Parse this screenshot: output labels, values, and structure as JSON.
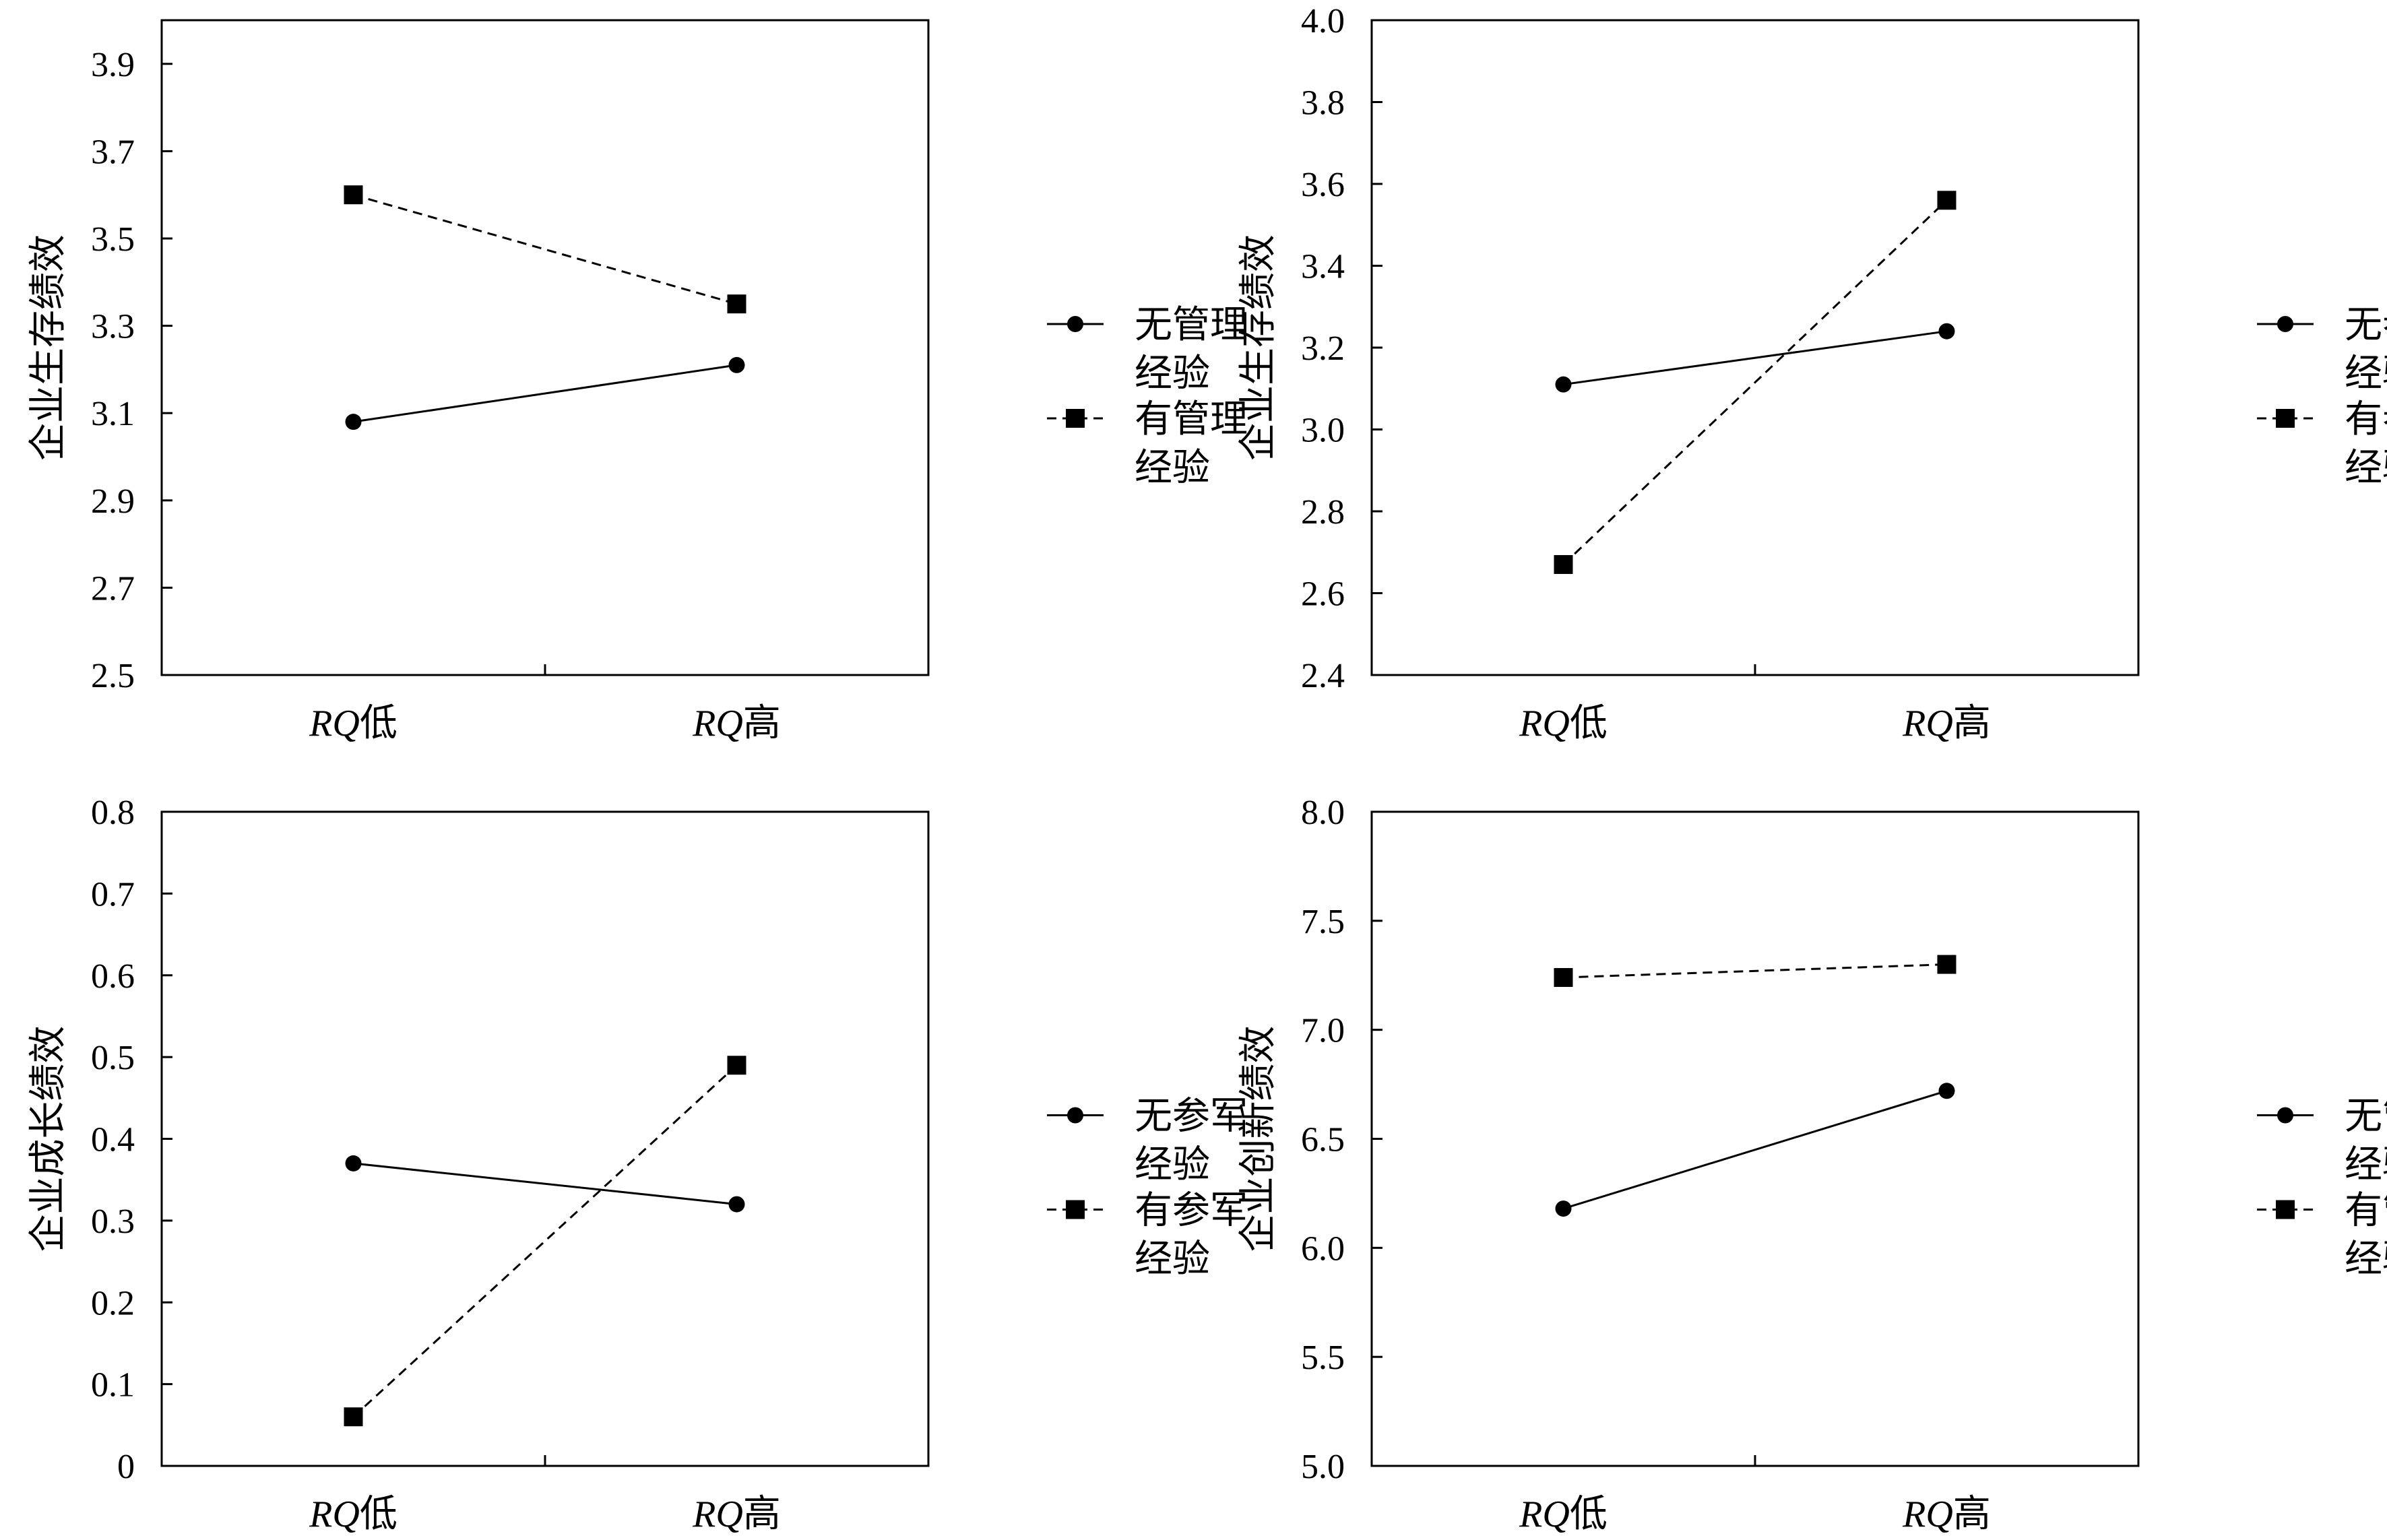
{
  "chart_data": [
    {
      "type": "line",
      "ylabel": "企业生存绩效",
      "categories": [
        {
          "italic": "RQ",
          "suffix": "低"
        },
        {
          "italic": "RQ",
          "suffix": "高"
        }
      ],
      "ylim": [
        2.5,
        4.0
      ],
      "yticks": [
        "2.5",
        "2.7",
        "2.9",
        "3.1",
        "3.3",
        "3.5",
        "3.7",
        "3.9"
      ],
      "series": [
        {
          "name_lines": [
            "无管理",
            "经验"
          ],
          "marker": "circle",
          "dash": false,
          "values": [
            3.08,
            3.21
          ]
        },
        {
          "name_lines": [
            "有管理",
            "经验"
          ],
          "marker": "square",
          "dash": true,
          "values": [
            3.6,
            3.35
          ]
        }
      ]
    },
    {
      "type": "line",
      "ylabel": "企业生存绩效",
      "categories": [
        {
          "italic": "RQ",
          "suffix": "低"
        },
        {
          "italic": "RQ",
          "suffix": "高"
        }
      ],
      "ylim": [
        2.4,
        4.0
      ],
      "yticks": [
        "2.4",
        "2.6",
        "2.8",
        "3.0",
        "3.2",
        "3.4",
        "3.6",
        "3.8",
        "4.0"
      ],
      "series": [
        {
          "name_lines": [
            "无参军",
            "经验"
          ],
          "marker": "circle",
          "dash": false,
          "values": [
            3.11,
            3.24
          ]
        },
        {
          "name_lines": [
            "有参军",
            "经验"
          ],
          "marker": "square",
          "dash": true,
          "values": [
            2.67,
            3.56
          ]
        }
      ]
    },
    {
      "type": "line",
      "ylabel": "企业成长绩效",
      "categories": [
        {
          "italic": "RQ",
          "suffix": "低"
        },
        {
          "italic": "RQ",
          "suffix": "高"
        }
      ],
      "ylim": [
        0,
        0.8
      ],
      "yticks": [
        "0",
        "0.1",
        "0.2",
        "0.3",
        "0.4",
        "0.5",
        "0.6",
        "0.7",
        "0.8"
      ],
      "series": [
        {
          "name_lines": [
            "无参军",
            "经验"
          ],
          "marker": "circle",
          "dash": false,
          "values": [
            0.37,
            0.32
          ]
        },
        {
          "name_lines": [
            "有参军",
            "经验"
          ],
          "marker": "square",
          "dash": true,
          "values": [
            0.06,
            0.49
          ]
        }
      ]
    },
    {
      "type": "line",
      "ylabel": "企业创新绩效",
      "categories": [
        {
          "italic": "RQ",
          "suffix": "低"
        },
        {
          "italic": "RQ",
          "suffix": "高"
        }
      ],
      "ylim": [
        5.0,
        8.0
      ],
      "yticks": [
        "5.0",
        "5.5",
        "6.0",
        "6.5",
        "7.0",
        "7.5",
        "8.0"
      ],
      "series": [
        {
          "name_lines": [
            "无管理",
            "经验"
          ],
          "marker": "circle",
          "dash": false,
          "values": [
            6.18,
            6.72
          ]
        },
        {
          "name_lines": [
            "有管理",
            "经验"
          ],
          "marker": "square",
          "dash": true,
          "values": [
            7.24,
            7.3
          ]
        }
      ]
    }
  ]
}
